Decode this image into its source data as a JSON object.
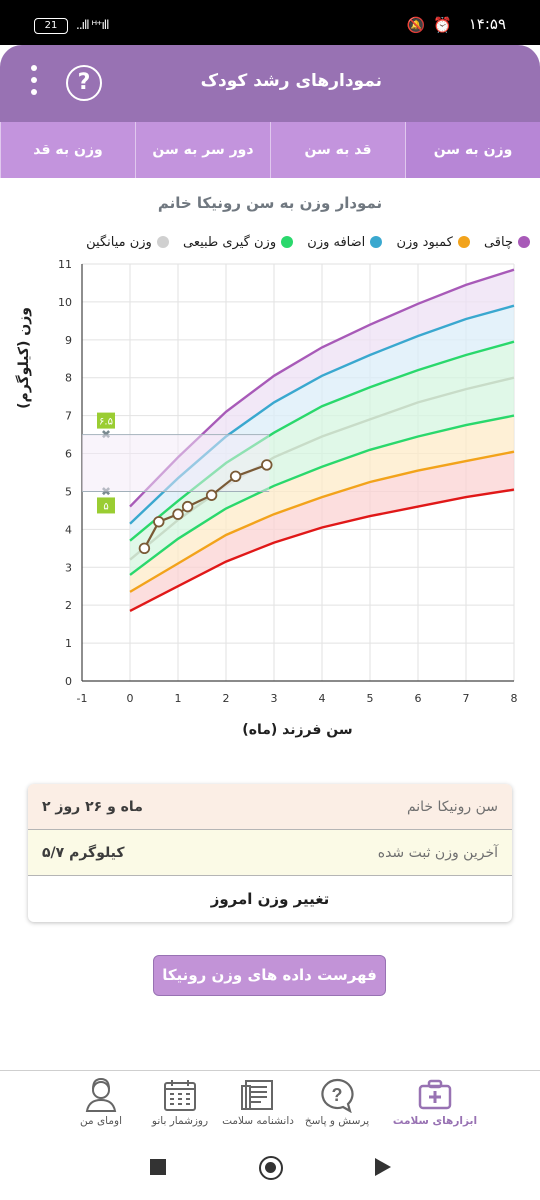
{
  "status_bar": {
    "time": "۱۴:۵۹",
    "battery": "21",
    "signal": "..ıll ᴴ⁺ıll"
  },
  "app_bar": {
    "title": "نمودارهای رشد کودک",
    "help_icon": "?"
  },
  "tabs": [
    {
      "label": "وزن به سن",
      "active": true
    },
    {
      "label": "قد به سن",
      "active": false
    },
    {
      "label": "دور سر به سن",
      "active": false
    },
    {
      "label": "وزن به قد",
      "active": false
    }
  ],
  "chart_title": "نمودار وزن به سن رونیکا خانم",
  "legend": [
    {
      "label": "چاقی",
      "color": "#a85ab8"
    },
    {
      "label": "کمبود وزن",
      "color": "#f2a31b"
    },
    {
      "label": "اضافه وزن",
      "color": "#3aa8cf"
    },
    {
      "label": "وزن گیری طبیعی",
      "color": "#2ad86c"
    },
    {
      "label": "وزن میانگین",
      "color": "#d0d0d0"
    }
  ],
  "chart_data": {
    "type": "line",
    "xlabel": "سن فرزند (ماه)",
    "ylabel": "وزن (کیلوگرم)",
    "xlim": [
      -1,
      8
    ],
    "ylim": [
      0,
      11
    ],
    "x_ticks": [
      "-1",
      "0",
      "1",
      "2",
      "3",
      "4",
      "5",
      "6",
      "7",
      "8"
    ],
    "y_ticks": [
      "0",
      "1",
      "2",
      "3",
      "4",
      "5",
      "6",
      "7",
      "8",
      "9",
      "10",
      "11"
    ],
    "grid": true,
    "x": [
      0,
      1,
      2,
      3,
      4,
      5,
      6,
      7,
      8
    ],
    "series": [
      {
        "name": "چاقی",
        "color": "#a85ab8",
        "values": [
          4.6,
          5.9,
          7.1,
          8.05,
          8.8,
          9.4,
          9.95,
          10.45,
          10.85
        ]
      },
      {
        "name": "اضافه وزن",
        "color": "#3aa8cf",
        "values": [
          4.15,
          5.35,
          6.45,
          7.35,
          8.05,
          8.6,
          9.1,
          9.55,
          9.9
        ]
      },
      {
        "name": "وزن گیری طبیعی",
        "color": "#2ad86c",
        "values": [
          3.7,
          4.75,
          5.75,
          6.55,
          7.25,
          7.75,
          8.2,
          8.6,
          8.95
        ]
      },
      {
        "name": "وزن میانگین",
        "color": "#c8dcc8",
        "values": [
          3.2,
          4.25,
          5.15,
          5.9,
          6.45,
          6.9,
          7.35,
          7.7,
          8.0
        ]
      },
      {
        "name": "وزن گیری طبیعی",
        "color": "#2ad86c",
        "values": [
          2.8,
          3.75,
          4.55,
          5.15,
          5.65,
          6.1,
          6.45,
          6.75,
          7.0
        ]
      },
      {
        "name": "کمبود وزن",
        "color": "#f2a31b",
        "values": [
          2.35,
          3.1,
          3.85,
          4.4,
          4.85,
          5.25,
          5.55,
          5.8,
          6.05
        ]
      },
      {
        "name": "چاقی",
        "color": "#e01818",
        "values": [
          1.85,
          2.5,
          3.15,
          3.65,
          4.05,
          4.35,
          4.6,
          4.85,
          5.05
        ]
      }
    ],
    "child_measurements": {
      "x": [
        0.3,
        0.6,
        1.0,
        1.2,
        1.7,
        2.2,
        2.85
      ],
      "y": [
        3.5,
        4.2,
        4.4,
        4.6,
        4.9,
        5.4,
        5.7
      ]
    },
    "reference_markers": [
      {
        "label": "۶.۵",
        "value": 6.5
      },
      {
        "label": "۵",
        "value": 5
      }
    ]
  },
  "info_card": {
    "age_label": "سن رونیکا خانم",
    "age_value": "۲ ماه و ۲۶ روز",
    "weight_label": "آخرین وزن ثبت شده",
    "weight_value": "۵/۷ کیلوگرم",
    "change_button": "تغییر وزن امروز"
  },
  "list_button": "فهرست داده های وزن رونیکا خانم",
  "bottom_nav": [
    {
      "label": "ابزارهای سلامت",
      "icon": "first-aid-kit-icon",
      "active": true
    },
    {
      "label": "پرسش و پاسخ",
      "icon": "question-bubble-icon",
      "active": false
    },
    {
      "label": "دانشنامه سلامت",
      "icon": "book-icon",
      "active": false
    },
    {
      "label": "روزشمار بانو",
      "icon": "calendar-icon",
      "active": false
    },
    {
      "label": "اومای من",
      "icon": "user-avatar-icon",
      "active": false
    }
  ]
}
